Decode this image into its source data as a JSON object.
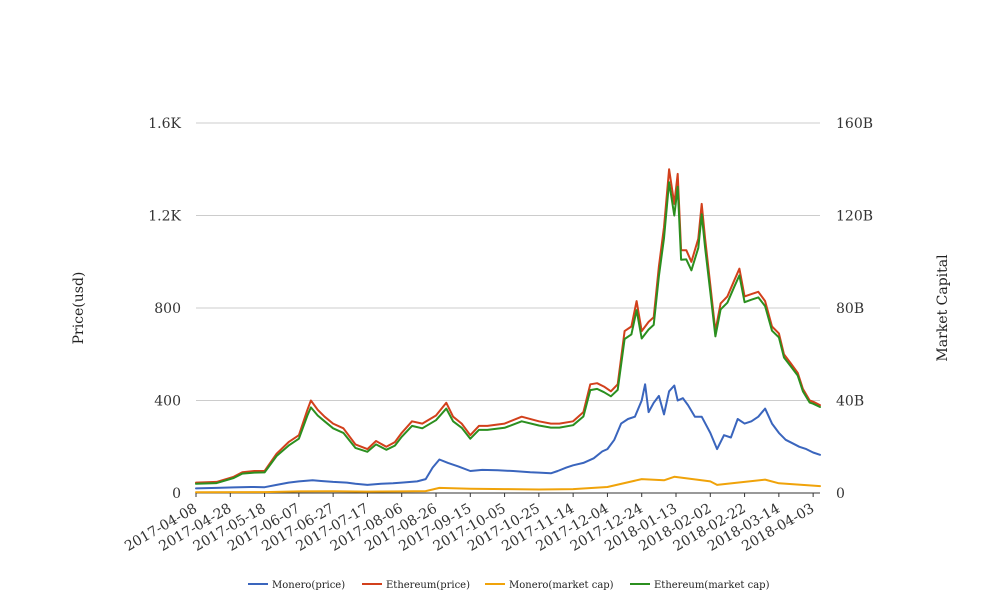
{
  "chart_data": {
    "type": "line",
    "title": "",
    "xlabel": "",
    "ylabel": "Price(usd)",
    "y2label": "Market Capital",
    "x_tick_labels": [
      "2017-04-08",
      "2017-04-28",
      "2017-05-18",
      "2017-06-07",
      "2017-06-27",
      "2017-07-17",
      "2017-08-06",
      "2017-08-26",
      "2017-09-15",
      "2017-10-05",
      "2017-10-25",
      "2017-11-14",
      "2017-12-04",
      "2017-12-24",
      "2018-01-13",
      "2018-02-02",
      "2018-02-22",
      "2018-03-14",
      "2018-04-03"
    ],
    "y_tick_labels": [
      "0",
      "400",
      "800",
      "1.2K",
      "1.6K"
    ],
    "y2_tick_labels": [
      "0",
      "40B",
      "80B",
      "120B",
      "160B"
    ],
    "ylim": [
      0,
      1600
    ],
    "y2lim": [
      0,
      160000000000
    ],
    "xlim": [
      "2017-04-08",
      "2018-04-07"
    ],
    "grid": true,
    "legend_position": "bottom",
    "series": [
      {
        "name": "Monero(price)",
        "axis": "left",
        "color": "#3a65bd",
        "points": [
          [
            "2017-04-08",
            20
          ],
          [
            "2017-04-20",
            22
          ],
          [
            "2017-04-30",
            24
          ],
          [
            "2017-05-10",
            26
          ],
          [
            "2017-05-18",
            25
          ],
          [
            "2017-05-25",
            35
          ],
          [
            "2017-06-01",
            45
          ],
          [
            "2017-06-07",
            50
          ],
          [
            "2017-06-15",
            55
          ],
          [
            "2017-06-20",
            52
          ],
          [
            "2017-06-27",
            48
          ],
          [
            "2017-07-05",
            45
          ],
          [
            "2017-07-10",
            40
          ],
          [
            "2017-07-17",
            35
          ],
          [
            "2017-07-25",
            40
          ],
          [
            "2017-08-01",
            42
          ],
          [
            "2017-08-06",
            45
          ],
          [
            "2017-08-15",
            50
          ],
          [
            "2017-08-20",
            60
          ],
          [
            "2017-08-24",
            110
          ],
          [
            "2017-08-28",
            145
          ],
          [
            "2017-09-02",
            130
          ],
          [
            "2017-09-08",
            115
          ],
          [
            "2017-09-15",
            95
          ],
          [
            "2017-09-22",
            100
          ],
          [
            "2017-10-01",
            98
          ],
          [
            "2017-10-10",
            95
          ],
          [
            "2017-10-20",
            90
          ],
          [
            "2017-10-25",
            88
          ],
          [
            "2017-11-01",
            85
          ],
          [
            "2017-11-05",
            95
          ],
          [
            "2017-11-10",
            110
          ],
          [
            "2017-11-14",
            120
          ],
          [
            "2017-11-20",
            130
          ],
          [
            "2017-11-26",
            150
          ],
          [
            "2017-12-01",
            180
          ],
          [
            "2017-12-04",
            190
          ],
          [
            "2017-12-08",
            230
          ],
          [
            "2017-12-12",
            300
          ],
          [
            "2017-12-16",
            320
          ],
          [
            "2017-12-20",
            330
          ],
          [
            "2017-12-24",
            400
          ],
          [
            "2017-12-26",
            470
          ],
          [
            "2017-12-28",
            350
          ],
          [
            "2017-12-31",
            390
          ],
          [
            "2018-01-03",
            420
          ],
          [
            "2018-01-06",
            340
          ],
          [
            "2018-01-09",
            440
          ],
          [
            "2018-01-12",
            465
          ],
          [
            "2018-01-14",
            400
          ],
          [
            "2018-01-17",
            410
          ],
          [
            "2018-01-20",
            380
          ],
          [
            "2018-01-24",
            330
          ],
          [
            "2018-01-28",
            330
          ],
          [
            "2018-02-02",
            260
          ],
          [
            "2018-02-06",
            190
          ],
          [
            "2018-02-10",
            250
          ],
          [
            "2018-02-14",
            240
          ],
          [
            "2018-02-18",
            320
          ],
          [
            "2018-02-22",
            300
          ],
          [
            "2018-02-26",
            310
          ],
          [
            "2018-03-02",
            330
          ],
          [
            "2018-03-06",
            365
          ],
          [
            "2018-03-10",
            300
          ],
          [
            "2018-03-14",
            260
          ],
          [
            "2018-03-18",
            230
          ],
          [
            "2018-03-22",
            215
          ],
          [
            "2018-03-26",
            200
          ],
          [
            "2018-03-30",
            190
          ],
          [
            "2018-04-03",
            175
          ],
          [
            "2018-04-07",
            165
          ]
        ]
      },
      {
        "name": "Ethereum(price)",
        "axis": "left",
        "color": "#d2401c",
        "points": [
          [
            "2017-04-08",
            45
          ],
          [
            "2017-04-20",
            48
          ],
          [
            "2017-04-30",
            70
          ],
          [
            "2017-05-05",
            90
          ],
          [
            "2017-05-12",
            95
          ],
          [
            "2017-05-18",
            95
          ],
          [
            "2017-05-25",
            170
          ],
          [
            "2017-06-01",
            220
          ],
          [
            "2017-06-07",
            250
          ],
          [
            "2017-06-12",
            360
          ],
          [
            "2017-06-14",
            400
          ],
          [
            "2017-06-18",
            360
          ],
          [
            "2017-06-22",
            330
          ],
          [
            "2017-06-27",
            300
          ],
          [
            "2017-07-03",
            280
          ],
          [
            "2017-07-10",
            210
          ],
          [
            "2017-07-17",
            190
          ],
          [
            "2017-07-22",
            225
          ],
          [
            "2017-07-28",
            200
          ],
          [
            "2017-08-02",
            220
          ],
          [
            "2017-08-06",
            260
          ],
          [
            "2017-08-12",
            310
          ],
          [
            "2017-08-18",
            300
          ],
          [
            "2017-08-26",
            335
          ],
          [
            "2017-09-01",
            390
          ],
          [
            "2017-09-05",
            330
          ],
          [
            "2017-09-10",
            300
          ],
          [
            "2017-09-15",
            250
          ],
          [
            "2017-09-20",
            290
          ],
          [
            "2017-09-25",
            290
          ],
          [
            "2017-10-05",
            300
          ],
          [
            "2017-10-15",
            330
          ],
          [
            "2017-10-25",
            310
          ],
          [
            "2017-11-01",
            300
          ],
          [
            "2017-11-06",
            300
          ],
          [
            "2017-11-14",
            310
          ],
          [
            "2017-11-20",
            350
          ],
          [
            "2017-11-24",
            470
          ],
          [
            "2017-11-28",
            475
          ],
          [
            "2017-12-02",
            460
          ],
          [
            "2017-12-06",
            440
          ],
          [
            "2017-12-10",
            470
          ],
          [
            "2017-12-14",
            700
          ],
          [
            "2017-12-18",
            720
          ],
          [
            "2017-12-21",
            830
          ],
          [
            "2017-12-24",
            700
          ],
          [
            "2017-12-28",
            740
          ],
          [
            "2017-12-31",
            760
          ],
          [
            "2018-01-03",
            980
          ],
          [
            "2018-01-06",
            1150
          ],
          [
            "2018-01-09",
            1400
          ],
          [
            "2018-01-12",
            1250
          ],
          [
            "2018-01-14",
            1380
          ],
          [
            "2018-01-16",
            1050
          ],
          [
            "2018-01-19",
            1050
          ],
          [
            "2018-01-22",
            1000
          ],
          [
            "2018-01-26",
            1100
          ],
          [
            "2018-01-28",
            1250
          ],
          [
            "2018-01-30",
            1100
          ],
          [
            "2018-02-02",
            900
          ],
          [
            "2018-02-05",
            700
          ],
          [
            "2018-02-08",
            820
          ],
          [
            "2018-02-12",
            850
          ],
          [
            "2018-02-16",
            920
          ],
          [
            "2018-02-19",
            970
          ],
          [
            "2018-02-22",
            850
          ],
          [
            "2018-02-26",
            860
          ],
          [
            "2018-03-02",
            870
          ],
          [
            "2018-03-06",
            830
          ],
          [
            "2018-03-10",
            720
          ],
          [
            "2018-03-14",
            690
          ],
          [
            "2018-03-17",
            600
          ],
          [
            "2018-03-21",
            560
          ],
          [
            "2018-03-25",
            520
          ],
          [
            "2018-03-28",
            450
          ],
          [
            "2018-04-01",
            400
          ],
          [
            "2018-04-03",
            395
          ],
          [
            "2018-04-07",
            380
          ]
        ]
      },
      {
        "name": "Monero(market cap)",
        "axis": "right",
        "color": "#f0a30a",
        "points": [
          [
            "2017-04-08",
            300000000
          ],
          [
            "2017-05-18",
            400000000
          ],
          [
            "2017-06-07",
            700000000
          ],
          [
            "2017-06-27",
            750000000
          ],
          [
            "2017-07-17",
            600000000
          ],
          [
            "2017-08-06",
            700000000
          ],
          [
            "2017-08-20",
            800000000
          ],
          [
            "2017-08-28",
            2200000000
          ],
          [
            "2017-09-15",
            1800000000
          ],
          [
            "2017-10-05",
            1700000000
          ],
          [
            "2017-10-25",
            1500000000
          ],
          [
            "2017-11-14",
            1700000000
          ],
          [
            "2017-12-04",
            2600000000
          ],
          [
            "2017-12-24",
            6000000000
          ],
          [
            "2018-01-06",
            5500000000
          ],
          [
            "2018-01-12",
            7000000000
          ],
          [
            "2018-02-02",
            5000000000
          ],
          [
            "2018-02-06",
            3500000000
          ],
          [
            "2018-02-22",
            4800000000
          ],
          [
            "2018-03-06",
            5800000000
          ],
          [
            "2018-03-14",
            4200000000
          ],
          [
            "2018-04-03",
            3200000000
          ],
          [
            "2018-04-07",
            3000000000
          ]
        ]
      },
      {
        "name": "Ethereum(market cap)",
        "axis": "right",
        "color": "#2b8f1f",
        "points": [
          [
            "2017-04-08",
            4000000000
          ],
          [
            "2017-04-20",
            4300000000
          ],
          [
            "2017-04-30",
            6500000000
          ],
          [
            "2017-05-05",
            8400000000
          ],
          [
            "2017-05-12",
            8800000000
          ],
          [
            "2017-05-18",
            8900000000
          ],
          [
            "2017-05-25",
            16000000000
          ],
          [
            "2017-06-01",
            20500000000
          ],
          [
            "2017-06-07",
            23500000000
          ],
          [
            "2017-06-12",
            33500000000
          ],
          [
            "2017-06-14",
            37000000000
          ],
          [
            "2017-06-18",
            33500000000
          ],
          [
            "2017-06-22",
            31000000000
          ],
          [
            "2017-06-27",
            28000000000
          ],
          [
            "2017-07-03",
            26000000000
          ],
          [
            "2017-07-10",
            19500000000
          ],
          [
            "2017-07-17",
            17800000000
          ],
          [
            "2017-07-22",
            21000000000
          ],
          [
            "2017-07-28",
            18700000000
          ],
          [
            "2017-08-02",
            20500000000
          ],
          [
            "2017-08-06",
            24300000000
          ],
          [
            "2017-08-12",
            29000000000
          ],
          [
            "2017-08-18",
            28000000000
          ],
          [
            "2017-08-26",
            31500000000
          ],
          [
            "2017-09-01",
            36500000000
          ],
          [
            "2017-09-05",
            31000000000
          ],
          [
            "2017-09-10",
            28200000000
          ],
          [
            "2017-09-15",
            23500000000
          ],
          [
            "2017-09-20",
            27300000000
          ],
          [
            "2017-09-25",
            27300000000
          ],
          [
            "2017-10-05",
            28200000000
          ],
          [
            "2017-10-15",
            31000000000
          ],
          [
            "2017-10-25",
            29200000000
          ],
          [
            "2017-11-01",
            28300000000
          ],
          [
            "2017-11-06",
            28300000000
          ],
          [
            "2017-11-14",
            29300000000
          ],
          [
            "2017-11-20",
            33100000000
          ],
          [
            "2017-11-24",
            44500000000
          ],
          [
            "2017-11-28",
            45000000000
          ],
          [
            "2017-12-02",
            43600000000
          ],
          [
            "2017-12-06",
            41800000000
          ],
          [
            "2017-12-10",
            44600000000
          ],
          [
            "2017-12-14",
            66600000000
          ],
          [
            "2017-12-18",
            68600000000
          ],
          [
            "2017-12-21",
            79100000000
          ],
          [
            "2017-12-24",
            66800000000
          ],
          [
            "2017-12-28",
            70700000000
          ],
          [
            "2017-12-31",
            72700000000
          ],
          [
            "2018-01-03",
            93800000000
          ],
          [
            "2018-01-06",
            110200000000
          ],
          [
            "2018-01-09",
            134400000000
          ],
          [
            "2018-01-12",
            120000000000
          ],
          [
            "2018-01-14",
            132400000000
          ],
          [
            "2018-01-16",
            100900000000
          ],
          [
            "2018-01-19",
            101000000000
          ],
          [
            "2018-01-22",
            96300000000
          ],
          [
            "2018-01-26",
            106000000000
          ],
          [
            "2018-01-28",
            120500000000
          ],
          [
            "2018-01-30",
            106100000000
          ],
          [
            "2018-02-02",
            86900000000
          ],
          [
            "2018-02-05",
            67700000000
          ],
          [
            "2018-02-08",
            79400000000
          ],
          [
            "2018-02-12",
            82300000000
          ],
          [
            "2018-02-16",
            89200000000
          ],
          [
            "2018-02-19",
            94100000000
          ],
          [
            "2018-02-22",
            82500000000
          ],
          [
            "2018-02-26",
            83600000000
          ],
          [
            "2018-03-02",
            84600000000
          ],
          [
            "2018-03-06",
            80800000000
          ],
          [
            "2018-03-10",
            70200000000
          ],
          [
            "2018-03-14",
            67300000000
          ],
          [
            "2018-03-17",
            58600000000
          ],
          [
            "2018-03-21",
            54700000000
          ],
          [
            "2018-03-25",
            50800000000
          ],
          [
            "2018-03-28",
            44000000000
          ],
          [
            "2018-04-01",
            39100000000
          ],
          [
            "2018-04-03",
            38600000000
          ],
          [
            "2018-04-07",
            37200000000
          ]
        ]
      }
    ]
  }
}
